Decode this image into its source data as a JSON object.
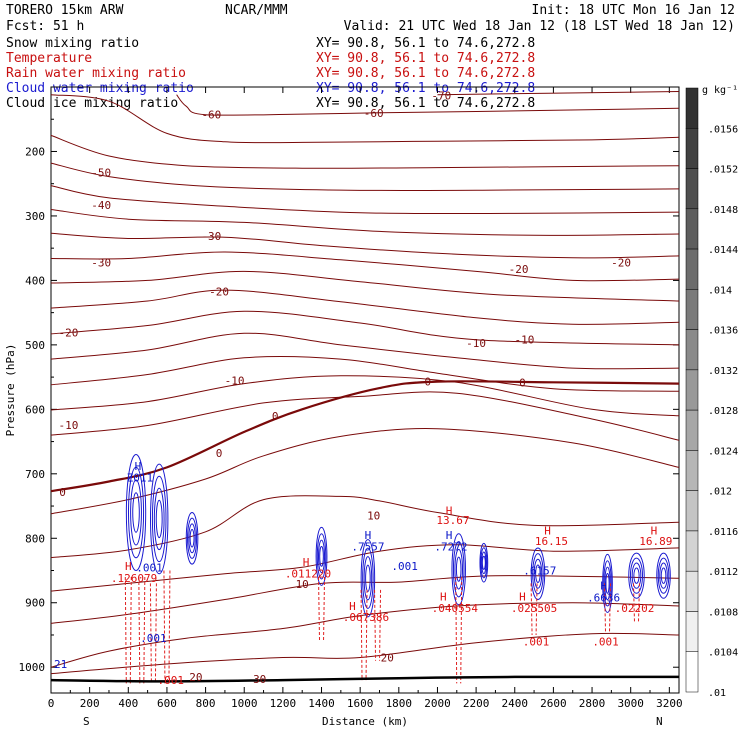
{
  "header": {
    "model": "TORERO  15km ARW",
    "center": "NCAR/MMM",
    "init": "Init: 18 UTC Mon 16 Jan 12",
    "fcst": "Fcst:   51 h",
    "valid": "Valid: 21 UTC Wed 18 Jan 12 (18 LST Wed 18 Jan 12)",
    "fields": [
      {
        "name": "Snow mixing ratio",
        "color": "#000000",
        "xy": "XY=  90.8, 56.1 to  74.6,272.8"
      },
      {
        "name": "Temperature",
        "color": "#c81010",
        "xy": "XY=  90.8, 56.1 to  74.6,272.8"
      },
      {
        "name": "Rain water mixing ratio",
        "color": "#c81010",
        "xy": "XY=  90.8, 56.1 to  74.6,272.8"
      },
      {
        "name": "Cloud water mixing ratio",
        "color": "#1a1ad0",
        "xy": "XY=  90.8, 56.1 to  74.6,272.8"
      },
      {
        "name": "Cloud ice mixing ratio",
        "color": "#000000",
        "xy": "XY=  90.8, 56.1 to  74.6,272.8"
      }
    ]
  },
  "chart_data": {
    "type": "cross-section contour",
    "xlabel": "Distance (km)",
    "ylabel": "Pressure (hPa)",
    "xlim": [
      0,
      3250
    ],
    "ylim": [
      1040,
      100
    ],
    "xticks": [
      0,
      200,
      400,
      600,
      800,
      1000,
      1200,
      1400,
      1600,
      1800,
      2000,
      2200,
      2400,
      2600,
      2800,
      3000,
      3200
    ],
    "yticks": [
      200,
      300,
      400,
      500,
      600,
      700,
      800,
      900,
      1000
    ],
    "endpoints": {
      "left": "S",
      "right": "N"
    },
    "temperature_isotherms": [
      {
        "value": -70,
        "points": [
          [
            2000,
            112
          ],
          [
            3250,
            107
          ]
        ]
      },
      {
        "value": -60,
        "points": [
          [
            650,
            112
          ],
          [
            700,
            130
          ],
          [
            800,
            143
          ],
          [
            1300,
            142
          ],
          [
            1700,
            140
          ],
          [
            2200,
            138
          ],
          [
            3250,
            133
          ]
        ]
      },
      {
        "value": -60,
        "points": [
          [
            0,
            112
          ],
          [
            300,
            122
          ],
          [
            600,
            172
          ],
          [
            900,
            185
          ],
          [
            1300,
            186
          ],
          [
            2000,
            184
          ],
          [
            2800,
            182
          ],
          [
            3250,
            178
          ]
        ]
      },
      {
        "value": -50,
        "points": [
          [
            0,
            175
          ],
          [
            300,
            207
          ],
          [
            700,
            222
          ],
          [
            1300,
            226
          ],
          [
            2000,
            225
          ],
          [
            3250,
            222
          ]
        ]
      },
      {
        "value": -50,
        "points": [
          [
            0,
            218
          ],
          [
            300,
            239
          ],
          [
            800,
            254
          ],
          [
            1500,
            260
          ],
          [
            2300,
            260
          ],
          [
            3250,
            258
          ]
        ]
      },
      {
        "value": -40,
        "points": [
          [
            0,
            253
          ],
          [
            300,
            272
          ],
          [
            900,
            285
          ],
          [
            1600,
            295
          ],
          [
            2400,
            296
          ],
          [
            3250,
            294
          ]
        ]
      },
      {
        "value": -40,
        "points": [
          [
            0,
            290
          ],
          [
            400,
            305
          ],
          [
            1000,
            310
          ],
          [
            1700,
            324
          ],
          [
            2500,
            330
          ],
          [
            3250,
            328
          ]
        ]
      },
      {
        "value": -30,
        "points": [
          [
            0,
            327
          ],
          [
            400,
            335
          ],
          [
            900,
            333
          ],
          [
            1400,
            346
          ],
          [
            2000,
            358
          ],
          [
            2700,
            365
          ],
          [
            3250,
            362
          ]
        ]
      },
      {
        "value": -30,
        "points": [
          [
            0,
            366
          ],
          [
            400,
            366
          ],
          [
            900,
            356
          ],
          [
            1500,
            368
          ],
          [
            2200,
            386
          ],
          [
            2700,
            400
          ],
          [
            3250,
            398
          ]
        ]
      },
      {
        "value": -20,
        "points": [
          [
            0,
            404
          ],
          [
            500,
            400
          ],
          [
            1000,
            386
          ],
          [
            1600,
            402
          ],
          [
            2300,
            422
          ],
          [
            3250,
            432
          ]
        ]
      },
      {
        "value": -20,
        "points": [
          [
            0,
            443
          ],
          [
            500,
            432
          ],
          [
            900,
            415
          ],
          [
            1500,
            433
          ],
          [
            2200,
            458
          ],
          [
            2700,
            468
          ],
          [
            3250,
            465
          ]
        ]
      },
      {
        "value": -10,
        "points": [
          [
            0,
            483
          ],
          [
            500,
            470
          ],
          [
            1000,
            448
          ],
          [
            1600,
            466
          ],
          [
            2200,
            492
          ],
          [
            3250,
            500
          ]
        ]
      },
      {
        "value": -10,
        "points": [
          [
            0,
            522
          ],
          [
            500,
            508
          ],
          [
            1000,
            482
          ],
          [
            1500,
            500
          ],
          [
            2100,
            520
          ],
          [
            2700,
            536
          ],
          [
            3250,
            536
          ]
        ]
      },
      {
        "value": -10,
        "points": [
          [
            0,
            562
          ],
          [
            500,
            546
          ],
          [
            1000,
            520
          ],
          [
            1500,
            522
          ],
          [
            2000,
            544
          ],
          [
            2600,
            568
          ],
          [
            3250,
            572
          ]
        ]
      },
      {
        "value": -10,
        "points": [
          [
            0,
            601
          ],
          [
            500,
            588
          ],
          [
            1000,
            560
          ],
          [
            1500,
            548
          ],
          [
            2100,
            558
          ],
          [
            2800,
            600
          ],
          [
            3250,
            610
          ]
        ]
      },
      {
        "value": -10,
        "points": [
          [
            0,
            640
          ],
          [
            500,
            625
          ],
          [
            1100,
            590
          ],
          [
            1600,
            580
          ],
          [
            2100,
            575
          ],
          [
            2800,
            615
          ],
          [
            3250,
            648
          ]
        ]
      },
      {
        "value": 0,
        "points": [
          [
            0,
            727
          ],
          [
            300,
            712
          ],
          [
            600,
            690
          ],
          [
            1000,
            635
          ],
          [
            1300,
            600
          ],
          [
            1700,
            567
          ],
          [
            2000,
            557
          ],
          [
            2600,
            558
          ],
          [
            3250,
            560
          ]
        ]
      },
      {
        "value": 0,
        "points": [
          [
            0,
            762
          ],
          [
            400,
            740
          ],
          [
            800,
            708
          ],
          [
            1100,
            672
          ],
          [
            1500,
            642
          ],
          [
            2000,
            630
          ],
          [
            2700,
            652
          ],
          [
            3250,
            690
          ]
        ]
      },
      {
        "value": 10,
        "points": [
          [
            0,
            830
          ],
          [
            400,
            818
          ],
          [
            800,
            790
          ],
          [
            1100,
            740
          ],
          [
            1500,
            735
          ],
          [
            1700,
            742
          ],
          [
            2000,
            760
          ],
          [
            2500,
            780
          ],
          [
            3250,
            775
          ]
        ]
      },
      {
        "value": 10,
        "points": [
          [
            0,
            882
          ],
          [
            400,
            870
          ],
          [
            900,
            855
          ],
          [
            1300,
            845
          ],
          [
            1700,
            820
          ],
          [
            2100,
            810
          ],
          [
            2600,
            820
          ],
          [
            3250,
            815
          ]
        ]
      },
      {
        "value": 10,
        "points": [
          [
            0,
            932
          ],
          [
            400,
            918
          ],
          [
            900,
            895
          ],
          [
            1400,
            870
          ],
          [
            1800,
            868
          ],
          [
            2300,
            858
          ],
          [
            3250,
            862
          ]
        ]
      },
      {
        "value": 20,
        "points": [
          [
            0,
            1000
          ],
          [
            300,
            975
          ],
          [
            700,
            955
          ],
          [
            1200,
            940
          ],
          [
            1600,
            920
          ],
          [
            2100,
            905
          ],
          [
            2700,
            900
          ],
          [
            3250,
            905
          ]
        ]
      },
      {
        "value": 20,
        "points": [
          [
            0,
            1010
          ],
          [
            600,
            995
          ],
          [
            1200,
            985
          ],
          [
            1600,
            985
          ],
          [
            2200,
            962
          ],
          [
            2800,
            948
          ],
          [
            3250,
            950
          ]
        ]
      }
    ],
    "temperature_labels": [
      {
        "text": "-70",
        "x": 2020,
        "y": 113
      },
      {
        "text": "-60",
        "x": 830,
        "y": 143
      },
      {
        "text": "-60",
        "x": 1670,
        "y": 140
      },
      {
        "text": "-50",
        "x": 260,
        "y": 233
      },
      {
        "text": "-40",
        "x": 260,
        "y": 283
      },
      {
        "text": "-30",
        "x": 830,
        "y": 331
      },
      {
        "text": "-30",
        "x": 260,
        "y": 372
      },
      {
        "text": "-20",
        "x": 2420,
        "y": 382
      },
      {
        "text": "-20",
        "x": 2950,
        "y": 372
      },
      {
        "text": "-20",
        "x": 870,
        "y": 417
      },
      {
        "text": "-20",
        "x": 90,
        "y": 481
      },
      {
        "text": "-10",
        "x": 2200,
        "y": 497
      },
      {
        "text": "-10",
        "x": 2450,
        "y": 492
      },
      {
        "text": "-10",
        "x": 950,
        "y": 555
      },
      {
        "text": "-10",
        "x": 90,
        "y": 624
      },
      {
        "text": "0",
        "x": 1950,
        "y": 557
      },
      {
        "text": "0",
        "x": 2440,
        "y": 558
      },
      {
        "text": "0",
        "x": 1160,
        "y": 610
      },
      {
        "text": "0",
        "x": 870,
        "y": 668
      },
      {
        "text": "0",
        "x": 60,
        "y": 728
      },
      {
        "text": "10",
        "x": 1670,
        "y": 765
      },
      {
        "text": "10",
        "x": 1300,
        "y": 871
      },
      {
        "text": "20",
        "x": 1740,
        "y": 985
      },
      {
        "text": "20",
        "x": 750,
        "y": 1015
      },
      {
        "text": "30",
        "x": 1080,
        "y": 1018
      }
    ],
    "rain_water_labels": [
      {
        "text": "H",
        "x": 400,
        "y": 843
      },
      {
        "text": ".126079",
        "x": 430,
        "y": 862
      },
      {
        "text": "H",
        "x": 1320,
        "y": 837
      },
      {
        "text": ".011220",
        "x": 1330,
        "y": 855
      },
      {
        "text": "H",
        "x": 1560,
        "y": 905
      },
      {
        "text": ".067386",
        "x": 1630,
        "y": 922
      },
      {
        "text": "H",
        "x": 2030,
        "y": 890
      },
      {
        "text": ".040554",
        "x": 2090,
        "y": 908
      },
      {
        "text": "H",
        "x": 2440,
        "y": 890
      },
      {
        "text": ".025505",
        "x": 2500,
        "y": 908
      },
      {
        "text": ".001",
        "x": 2510,
        "y": 960
      },
      {
        "text": ".001",
        "x": 2870,
        "y": 960
      },
      {
        "text": ".02202",
        "x": 3020,
        "y": 908
      },
      {
        "text": "H",
        "x": 2060,
        "y": 757
      },
      {
        "text": "13.67",
        "x": 2080,
        "y": 772
      },
      {
        "text": "H",
        "x": 2570,
        "y": 788
      },
      {
        "text": "16.15",
        "x": 2590,
        "y": 804
      },
      {
        "text": "H",
        "x": 3120,
        "y": 788
      },
      {
        "text": "16.89",
        "x": 3130,
        "y": 804
      },
      {
        "text": ".001",
        "x": 620,
        "y": 1020
      }
    ],
    "cloud_water_labels": [
      {
        "text": "H",
        "x": 450,
        "y": 688
      },
      {
        "text": "Z011",
        "x": 460,
        "y": 706
      },
      {
        "text": ".001",
        "x": 510,
        "y": 845
      },
      {
        "text": ".001",
        "x": 1830,
        "y": 843
      },
      {
        "text": "H",
        "x": 1640,
        "y": 795
      },
      {
        "text": ".7557",
        "x": 1640,
        "y": 813
      },
      {
        "text": "H",
        "x": 2060,
        "y": 795
      },
      {
        "text": ".7272",
        "x": 2070,
        "y": 813
      },
      {
        "text": ".6157",
        "x": 2530,
        "y": 850
      },
      {
        "text": "H",
        "x": 2860,
        "y": 873
      },
      {
        "text": ".6636",
        "x": 2860,
        "y": 892
      },
      {
        "text": ".001",
        "x": 530,
        "y": 955
      },
      {
        "text": "21",
        "x": 50,
        "y": 995
      }
    ],
    "cloud_water_cells": [
      {
        "x": 440,
        "y": 760,
        "rx": 50,
        "ry": 90
      },
      {
        "x": 560,
        "y": 770,
        "rx": 45,
        "ry": 85
      },
      {
        "x": 730,
        "y": 800,
        "rx": 30,
        "ry": 40
      },
      {
        "x": 1400,
        "y": 828,
        "rx": 28,
        "ry": 45
      },
      {
        "x": 1640,
        "y": 862,
        "rx": 35,
        "ry": 60
      },
      {
        "x": 2110,
        "y": 848,
        "rx": 35,
        "ry": 55
      },
      {
        "x": 2240,
        "y": 838,
        "rx": 20,
        "ry": 30
      },
      {
        "x": 2520,
        "y": 855,
        "rx": 35,
        "ry": 40
      },
      {
        "x": 2880,
        "y": 870,
        "rx": 25,
        "ry": 45
      },
      {
        "x": 3030,
        "y": 858,
        "rx": 40,
        "ry": 35
      },
      {
        "x": 3170,
        "y": 858,
        "rx": 35,
        "ry": 35
      }
    ],
    "rain_shafts": [
      {
        "x": 400,
        "top": 860,
        "bottom": 1025
      },
      {
        "x": 470,
        "top": 860,
        "bottom": 1025
      },
      {
        "x": 530,
        "top": 870,
        "bottom": 1025
      },
      {
        "x": 600,
        "top": 850,
        "bottom": 1025
      },
      {
        "x": 1400,
        "top": 860,
        "bottom": 960
      },
      {
        "x": 1620,
        "top": 880,
        "bottom": 1020
      },
      {
        "x": 1690,
        "top": 880,
        "bottom": 990
      },
      {
        "x": 2110,
        "top": 860,
        "bottom": 1025
      },
      {
        "x": 2500,
        "top": 870,
        "bottom": 950
      },
      {
        "x": 2880,
        "top": 870,
        "bottom": 945
      },
      {
        "x": 3030,
        "top": 870,
        "bottom": 930
      }
    ],
    "surface": {
      "points": [
        [
          0,
          1020
        ],
        [
          600,
          1022
        ],
        [
          1200,
          1020
        ],
        [
          1800,
          1017
        ],
        [
          2400,
          1015
        ],
        [
          3250,
          1015
        ]
      ]
    },
    "colorbar": {
      "unit": "g kg⁻¹",
      "ticks": [
        ".0156",
        ".0152",
        ".0148",
        ".0144",
        ".014",
        ".0136",
        ".0132",
        ".0128",
        ".0124",
        ".012",
        ".0116",
        ".0112",
        ".0108",
        ".0104",
        ".01"
      ],
      "levels": 15
    }
  }
}
